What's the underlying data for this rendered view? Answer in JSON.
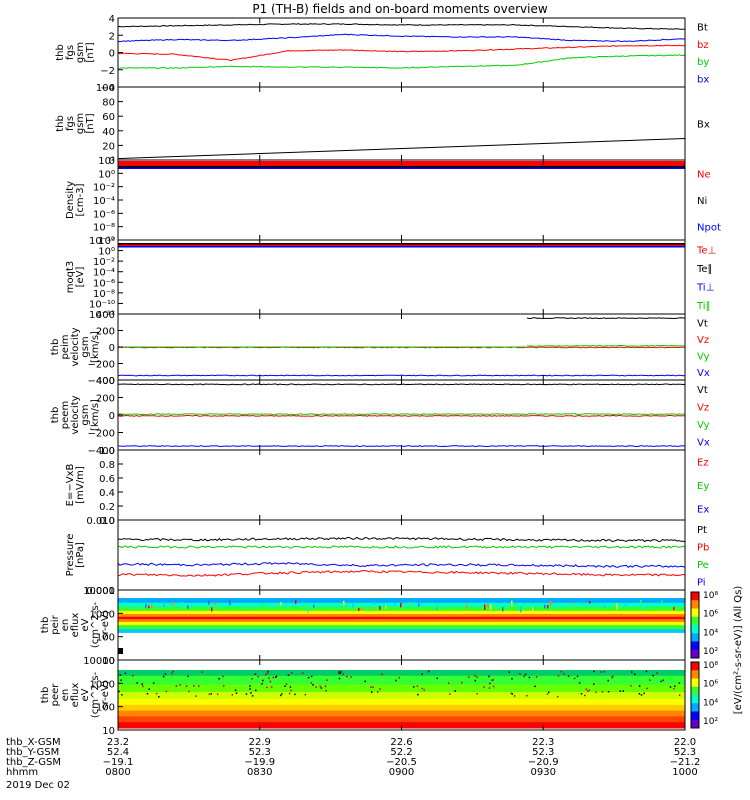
{
  "title": "P1 (TH-B) fields and on-board moments overview",
  "chart_data": [
    {
      "type": "line",
      "panel": "fgs_gsm",
      "ylabel": [
        "thb",
        "fgs",
        "gsm",
        "[nT]"
      ],
      "ylim": [
        -4,
        4
      ],
      "yticks": [
        "4",
        "2",
        "0",
        "−2",
        "−4"
      ],
      "series": [
        {
          "name": "Bt",
          "color": "#000000",
          "values": [
            3.0,
            3.1,
            3.2,
            3.3,
            3.3,
            3.2,
            3.2,
            3.2,
            3.0,
            2.8,
            2.7
          ]
        },
        {
          "name": "bz",
          "color": "#ff0000",
          "values": [
            -0.1,
            -0.2,
            -0.9,
            0.2,
            0.3,
            0.1,
            0.2,
            0.4,
            0.6,
            0.8,
            0.8
          ]
        },
        {
          "name": "by",
          "color": "#00cc00",
          "values": [
            -1.8,
            -1.8,
            -1.6,
            -1.7,
            -1.7,
            -1.8,
            -1.6,
            -1.5,
            -0.6,
            -0.4,
            -0.3
          ]
        },
        {
          "name": "bx",
          "color": "#0000ff",
          "values": [
            1.3,
            1.5,
            1.4,
            1.7,
            2.1,
            1.9,
            1.8,
            1.8,
            1.4,
            1.3,
            1.6
          ]
        }
      ]
    },
    {
      "type": "line",
      "panel": "fgs_gsm_bx",
      "ylabel": [
        "thb",
        "fgs",
        "gsm",
        "[nT]"
      ],
      "ylim": [
        -5,
        100
      ],
      "yticks": [
        "100",
        "80",
        "60",
        "40",
        "20",
        "0"
      ],
      "series": [
        {
          "name": "Bx",
          "color": "#000000",
          "values": [
            -3.0,
            26.0
          ]
        }
      ]
    },
    {
      "type": "line",
      "panel": "density",
      "yscale": "log",
      "ylabel": [
        "Density",
        "[cm-3]"
      ],
      "yticks": [
        "10²",
        "10⁰",
        "10⁻²",
        "10⁻⁴",
        "10⁻⁶",
        "10⁻⁸",
        "10⁻¹⁰"
      ],
      "series": [
        {
          "name": "Ne",
          "color": "#ff0000",
          "values": [
            10,
            10
          ]
        },
        {
          "name": "Ni",
          "color": "#000000",
          "values": [
            1,
            1
          ]
        },
        {
          "name": "Npot",
          "color": "#0000ff",
          "values": [
            0.8,
            0.8
          ]
        }
      ]
    },
    {
      "type": "line",
      "panel": "temperature",
      "yscale": "log",
      "ylabel": [
        "moqt3",
        "[eV]"
      ],
      "yticks": [
        "10²",
        "10⁰",
        "10⁻²",
        "10⁻⁴",
        "10⁻⁶",
        "10⁻⁸",
        "10⁻¹⁰",
        "10⁻¹²"
      ],
      "series": [
        {
          "name": "Te⊥",
          "color": "#ff0000",
          "values": [
            1,
            1
          ]
        },
        {
          "name": "Te∥",
          "color": "#000000",
          "values": [
            1,
            1
          ]
        },
        {
          "name": "Ti⊥",
          "color": "#0000ff",
          "values": [
            1,
            1
          ]
        },
        {
          "name": "Ti∥",
          "color": "#00cc00",
          "values": [
            1,
            1
          ]
        }
      ]
    },
    {
      "type": "line",
      "panel": "peim_velocity",
      "ylabel": [
        "thb",
        "peim",
        "velocity",
        "gsm",
        "[km/s]"
      ],
      "ylim": [
        -400,
        400
      ],
      "yticks": [
        "400",
        "200",
        "0",
        "−200",
        "−400"
      ],
      "series": [
        {
          "name": "Vt",
          "color": "#000000",
          "values": [
            350,
            350
          ]
        },
        {
          "name": "Vz",
          "color": "#ff0000",
          "values": [
            -5,
            -5
          ]
        },
        {
          "name": "Vy",
          "color": "#00cc00",
          "values": [
            5,
            15
          ]
        },
        {
          "name": "Vx",
          "color": "#0000ff",
          "values": [
            -345,
            -345
          ]
        }
      ]
    },
    {
      "type": "line",
      "panel": "peem_velocity",
      "ylabel": [
        "thb",
        "peem",
        "velocity",
        "gsm",
        "[km/s]"
      ],
      "ylim": [
        -400,
        400
      ],
      "yticks": [
        "400",
        "200",
        "0",
        "−200",
        "−400"
      ],
      "series": [
        {
          "name": "Vt",
          "color": "#000000",
          "values": [
            350,
            350
          ]
        },
        {
          "name": "Vz",
          "color": "#ff0000",
          "values": [
            -10,
            -10
          ]
        },
        {
          "name": "Vy",
          "color": "#00cc00",
          "values": [
            10,
            10
          ]
        },
        {
          "name": "Vx",
          "color": "#0000ff",
          "values": [
            -355,
            -355
          ]
        }
      ]
    },
    {
      "type": "line",
      "panel": "efield",
      "ylabel": [
        "E=−VxB",
        "[mV/m]"
      ],
      "ylim": [
        0,
        1
      ],
      "yticks": [
        "1.0",
        "0.8",
        "0.6",
        "0.4",
        "0.2",
        "0.0"
      ],
      "series": [
        {
          "name": "Ez",
          "color": "#ff0000",
          "values": []
        },
        {
          "name": "Ey",
          "color": "#00cc00",
          "values": []
        },
        {
          "name": "Ex",
          "color": "#0000ff",
          "values": []
        }
      ]
    },
    {
      "type": "line",
      "panel": "pressure",
      "yscale": "log",
      "ylabel": [
        "Pressure",
        "[nPa]"
      ],
      "ylim": [
        0.001,
        0.1
      ],
      "yticks": [
        "0.010",
        "0.001"
      ],
      "series": [
        {
          "name": "Pt",
          "color": "#000000",
          "values": [
            0.028,
            0.027,
            0.029,
            0.03,
            0.029,
            0.027,
            0.026,
            0.026
          ]
        },
        {
          "name": "Pb",
          "color": "#ff0000",
          "values": [
            0.0028,
            0.0026,
            0.0031,
            0.0034,
            0.0032,
            0.003,
            0.0027,
            0.0027
          ]
        },
        {
          "name": "Pe",
          "color": "#00cc00",
          "values": [
            0.017,
            0.017,
            0.017,
            0.017,
            0.017,
            0.017,
            0.017,
            0.017
          ]
        },
        {
          "name": "Pi",
          "color": "#0000ff",
          "values": [
            0.0055,
            0.0052,
            0.0058,
            0.005,
            0.0053,
            0.0051,
            0.0048,
            0.0047
          ]
        }
      ]
    },
    {
      "type": "heatmap",
      "panel": "peir_eflux",
      "yscale": "log",
      "ylabel": [
        "thb",
        "peir",
        "en",
        "eflux",
        "eV",
        "(cm^2-s-",
        "sr-eV)"
      ],
      "yticks": [
        "10000",
        "1000",
        "100",
        "10"
      ],
      "colorbar": {
        "ticks": [
          "10⁸",
          "10⁶",
          "10⁴",
          "10²"
        ]
      }
    },
    {
      "type": "heatmap",
      "panel": "peer_eflux",
      "yscale": "log",
      "ylabel": [
        "thb",
        "peer",
        "en",
        "eflux",
        "eV",
        "(cm^2-s-",
        "sr-eV)"
      ],
      "yticks": [
        "10000",
        "1000",
        "100",
        "10"
      ],
      "colorbar": {
        "ticks": [
          "10⁸",
          "10⁶",
          "10⁴",
          "10²"
        ]
      }
    }
  ],
  "colorbar_label": "[eV/(cm²-s-sr-eV)] (All Qs)",
  "xaxis": {
    "rows": [
      {
        "label": "thb_X-GSM",
        "values": [
          "23.2",
          "22.9",
          "22.6",
          "22.3",
          "22.0"
        ]
      },
      {
        "label": "thb_Y-GSM",
        "values": [
          "52.4",
          "52.3",
          "52.2",
          "52.3",
          "52.3"
        ]
      },
      {
        "label": "thb_Z-GSM",
        "values": [
          "−19.1",
          "−19.9",
          "−20.5",
          "−20.9",
          "−21.2"
        ]
      },
      {
        "label": "hhmm",
        "values": [
          "0800",
          "0830",
          "0900",
          "0930",
          "1000"
        ]
      }
    ],
    "date": "2019 Dec 02"
  }
}
